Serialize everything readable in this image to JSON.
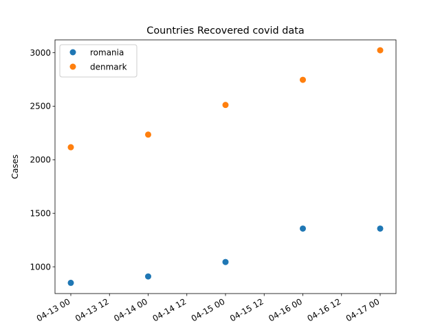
{
  "chart_data": {
    "type": "scatter",
    "title": "Countries Recovered covid data",
    "xlabel": "",
    "ylabel": "Cases",
    "x": [
      "04-13 00",
      "04-14 00",
      "04-15 00",
      "04-16 00",
      "04-17 00"
    ],
    "x_ticks": [
      "04-13 00",
      "04-13 12",
      "04-14 00",
      "04-14 12",
      "04-15 00",
      "04-15 12",
      "04-16 00",
      "04-16 12",
      "04-17 00"
    ],
    "y_ticks": [
      1000,
      1500,
      2000,
      2500,
      3000
    ],
    "ylim": [
      750,
      3120
    ],
    "grid": false,
    "legend_position": "top-left",
    "series": [
      {
        "name": "romania",
        "color": "#1f77b4",
        "values": [
          850,
          910,
          1045,
          1357,
          1357
        ]
      },
      {
        "name": "denmark",
        "color": "#ff7f0e",
        "values": [
          2117,
          2235,
          2512,
          2747,
          3023
        ]
      }
    ]
  }
}
